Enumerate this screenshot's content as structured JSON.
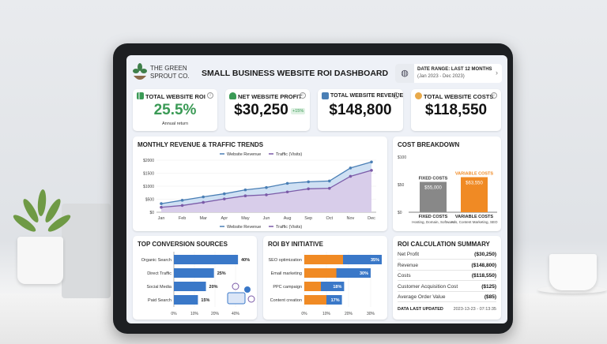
{
  "header": {
    "brand_line1": "THE GREEN",
    "brand_line2": "SPROUT CO.",
    "title": "SMALL BUSINESS WEBSITE ROI DASHBOARD",
    "date_range_label": "DATE RANGE: LAST 12 MONTHS",
    "date_range_sub": "(Jan 2023 - Dec 2023)"
  },
  "kpis": [
    {
      "title": "TOTAL WEBSITE ROI",
      "value": "25.5%",
      "sub": "Annual return",
      "icon": "bar-chart-icon",
      "color": "#3a9a55"
    },
    {
      "title": "NET WEBSITE PROFIT",
      "value": "$30,250",
      "badge": "+15%",
      "icon": "plant-money-icon"
    },
    {
      "title": "TOTAL WEBSITE REVENUE",
      "value": "$148,800",
      "icon": "store-icon"
    },
    {
      "title": "TOTAL WEBSITE COSTS",
      "value": "$118,550",
      "icon": "coins-icon"
    }
  ],
  "colors": {
    "revenue": "#4a7fb5",
    "traffic": "#7b5ba8",
    "fixed": "#888888",
    "variable": "#f08a24",
    "bar_blue": "#3a78c8",
    "green": "#3a9a55"
  },
  "chart_data": [
    {
      "type": "line",
      "title": "MONTHLY REVENUE & TRAFFIC TRENDS",
      "categories": [
        "Jan",
        "Feb",
        "Mar",
        "Apr",
        "May",
        "Jun",
        "Aug",
        "Sep",
        "Oct",
        "Nov",
        "Dec"
      ],
      "series": [
        {
          "name": "Website Revenue",
          "values": [
            330,
            460,
            590,
            710,
            860,
            950,
            1110,
            1170,
            1200,
            1700,
            1930
          ]
        },
        {
          "name": "Traffic (Visits)",
          "values": [
            190,
            260,
            380,
            510,
            630,
            670,
            780,
            900,
            920,
            1380,
            1610
          ]
        }
      ],
      "yticks": [
        "$0",
        "$500",
        "$1000",
        "$1500",
        "$2000"
      ],
      "ylim": [
        0,
        2000
      ],
      "legend": "top and bottom"
    },
    {
      "type": "bar",
      "title": "COST BREAKDOWN",
      "categories": [
        "FIXED COSTS",
        "VARIABLE COSTS"
      ],
      "subs": [
        "Hosting, Domain, Software",
        "Ads, Content Marketing, SEO"
      ],
      "value_labels": [
        "$55,000",
        "$63,550"
      ],
      "values": [
        55,
        63.55
      ],
      "yticks": [
        "$0",
        "$50",
        "$100"
      ],
      "ylim": [
        0,
        100
      ]
    },
    {
      "type": "bar",
      "title": "TOP CONVERSION SOURCES",
      "categories": [
        "Organic Search",
        "Direct Traffic",
        "Social Media",
        "Paid Search"
      ],
      "values": [
        40,
        25,
        20,
        15
      ],
      "value_labels": [
        "40%",
        "25%",
        "20%",
        "15%"
      ],
      "xticks": [
        "0%",
        "10%",
        "20%",
        "40%"
      ]
    },
    {
      "type": "bar",
      "title": "ROI BY INITIATIVE",
      "categories": [
        "SEO optimization",
        "Email marketing",
        "PPC campaign",
        "Content creation"
      ],
      "values": [
        35,
        30,
        18,
        17
      ],
      "orange_part": [
        17.5,
        14.5,
        7.5,
        10
      ],
      "value_labels": [
        "35%",
        "30%",
        "18%",
        "17%"
      ],
      "xticks": [
        "0%",
        "10%",
        "20%",
        "30%"
      ]
    }
  ],
  "summary": {
    "title": "ROI CALCULATION SUMMARY",
    "rows": [
      {
        "label": "Net Profit",
        "value": "($30,250)"
      },
      {
        "label": "Revenue",
        "value": "($148,800)"
      },
      {
        "label": "Costs",
        "value": "($118,550)"
      },
      {
        "label": "Customer Acquisition Cost",
        "value": "($125)"
      },
      {
        "label": "Average Order Value",
        "value": "($85)"
      }
    ],
    "updated_label": "DATA LAST UPDATED",
    "updated_value": "2023-13-23 - 07:13:35"
  }
}
